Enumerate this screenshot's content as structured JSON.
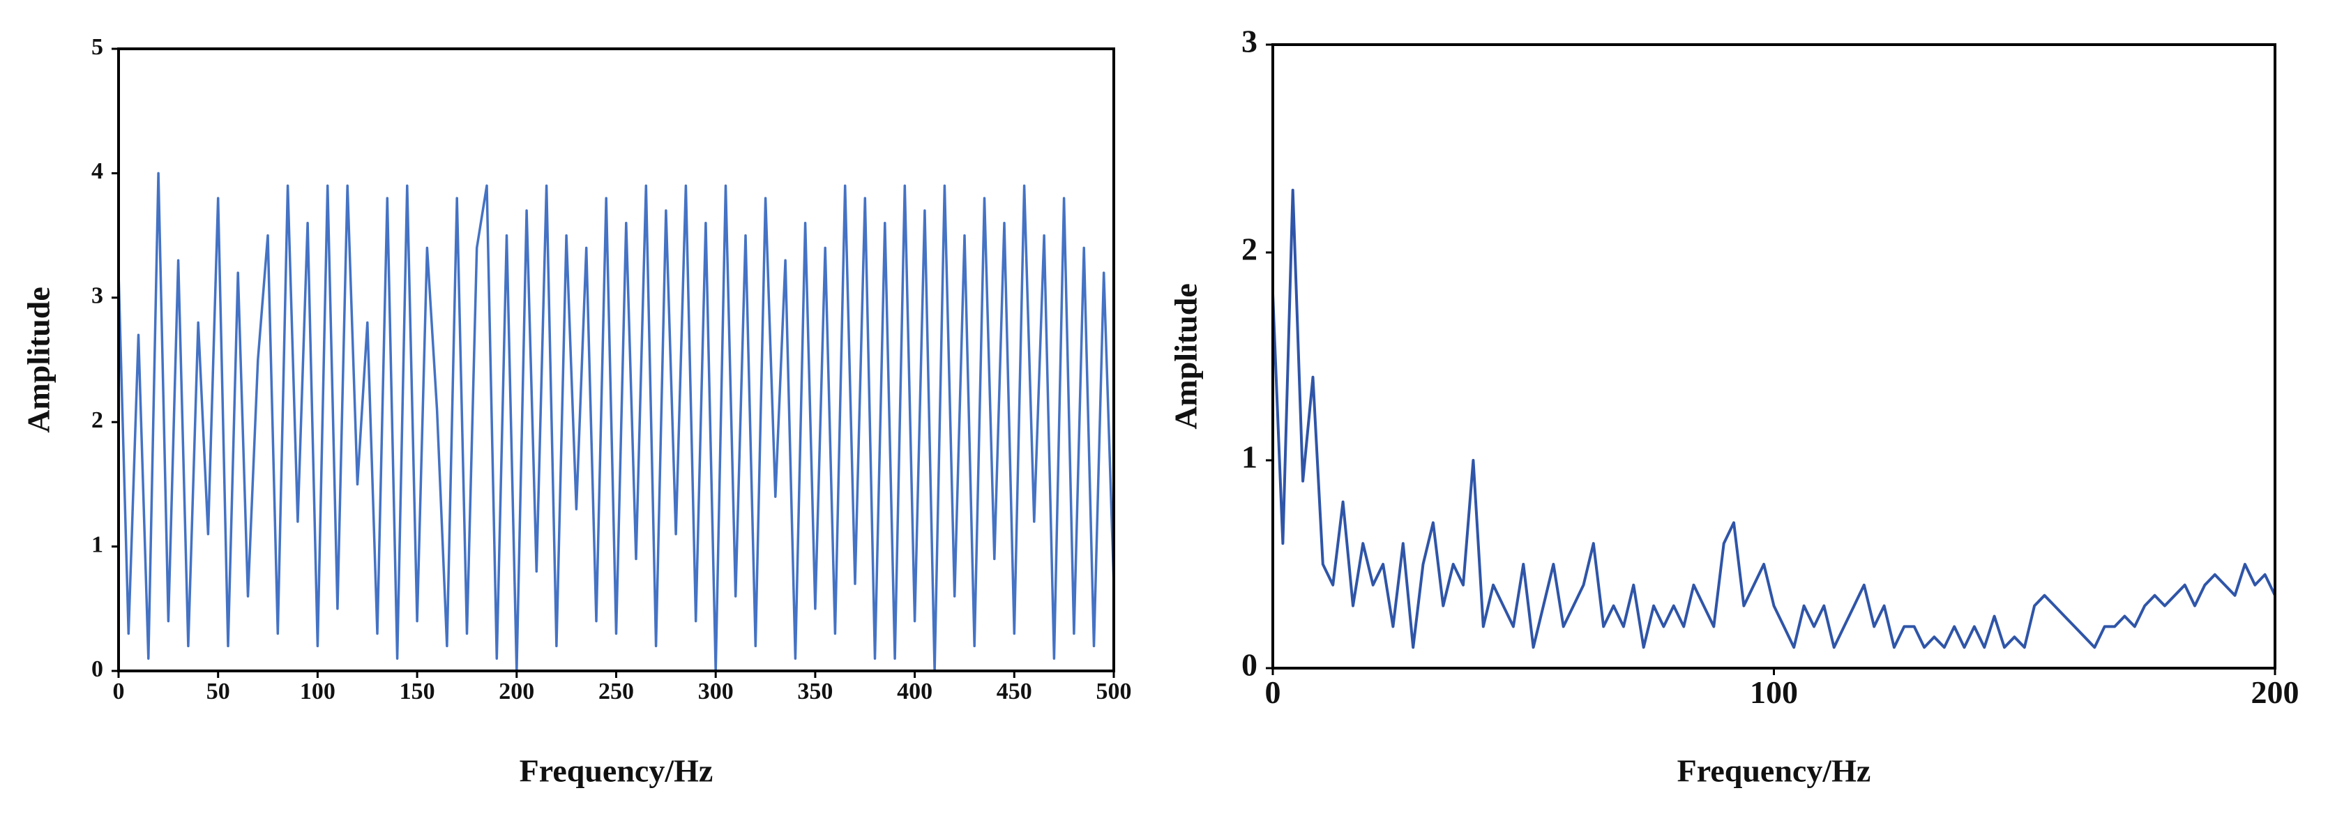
{
  "chart_data": [
    {
      "type": "line",
      "xlabel": "Frequency/Hz",
      "ylabel": "Amplitude",
      "xlim": [
        0,
        500
      ],
      "ylim": [
        0,
        5
      ],
      "xticks": [
        0,
        50,
        100,
        150,
        200,
        250,
        300,
        350,
        400,
        450,
        500
      ],
      "yticks": [
        0,
        1,
        2,
        3,
        4,
        5
      ],
      "x": [
        0,
        5,
        10,
        15,
        20,
        25,
        30,
        35,
        40,
        45,
        50,
        55,
        60,
        65,
        70,
        75,
        80,
        85,
        90,
        95,
        100,
        105,
        110,
        115,
        120,
        125,
        130,
        135,
        140,
        145,
        150,
        155,
        160,
        165,
        170,
        175,
        180,
        185,
        190,
        195,
        200,
        205,
        210,
        215,
        220,
        225,
        230,
        235,
        240,
        245,
        250,
        255,
        260,
        265,
        270,
        275,
        280,
        285,
        290,
        295,
        300,
        305,
        310,
        315,
        320,
        325,
        330,
        335,
        340,
        345,
        350,
        355,
        360,
        365,
        370,
        375,
        380,
        385,
        390,
        395,
        400,
        405,
        410,
        415,
        420,
        425,
        430,
        435,
        440,
        445,
        450,
        455,
        460,
        465,
        470,
        475,
        480,
        485,
        490,
        495,
        500
      ],
      "series": [
        {
          "color": "#4472c4",
          "values": [
            3.2,
            0.3,
            2.7,
            0.1,
            4.0,
            0.4,
            3.3,
            0.2,
            2.8,
            1.1,
            3.8,
            0.2,
            3.2,
            0.6,
            2.5,
            3.5,
            0.3,
            3.9,
            1.2,
            3.6,
            0.2,
            3.9,
            0.5,
            3.9,
            1.5,
            2.8,
            0.3,
            3.8,
            0.1,
            3.9,
            0.4,
            3.4,
            2.1,
            0.2,
            3.8,
            0.3,
            3.4,
            3.9,
            0.1,
            3.5,
            0.0,
            3.7,
            0.8,
            3.9,
            0.2,
            3.5,
            1.3,
            3.4,
            0.4,
            3.8,
            0.3,
            3.6,
            0.9,
            3.9,
            0.2,
            3.7,
            1.1,
            3.9,
            0.4,
            3.6,
            0.0,
            3.9,
            0.6,
            3.5,
            0.2,
            3.8,
            1.4,
            3.3,
            0.1,
            3.6,
            0.5,
            3.4,
            0.3,
            3.9,
            0.7,
            3.8,
            0.1,
            3.6,
            0.1,
            3.9,
            0.4,
            3.7,
            0.0,
            3.9,
            0.6,
            3.5,
            0.2,
            3.8,
            0.9,
            3.6,
            0.3,
            3.9,
            1.2,
            3.5,
            0.1,
            3.8,
            0.3,
            3.4,
            0.2,
            3.2,
            0.7
          ]
        }
      ]
    },
    {
      "type": "line",
      "xlabel": "Frequency/Hz",
      "ylabel": "Amplitude",
      "xlim": [
        0,
        200
      ],
      "ylim": [
        0,
        3
      ],
      "xticks": [
        0,
        100,
        200
      ],
      "yticks": [
        0,
        1,
        2,
        3
      ],
      "x": [
        0,
        2,
        4,
        6,
        8,
        10,
        12,
        14,
        16,
        18,
        20,
        22,
        24,
        26,
        28,
        30,
        32,
        34,
        36,
        38,
        40,
        42,
        44,
        46,
        48,
        50,
        52,
        54,
        56,
        58,
        60,
        62,
        64,
        66,
        68,
        70,
        72,
        74,
        76,
        78,
        80,
        82,
        84,
        86,
        88,
        90,
        92,
        94,
        96,
        98,
        100,
        102,
        104,
        106,
        108,
        110,
        112,
        114,
        116,
        118,
        120,
        122,
        124,
        126,
        128,
        130,
        132,
        134,
        136,
        138,
        140,
        142,
        144,
        146,
        148,
        150,
        152,
        154,
        156,
        158,
        160,
        162,
        164,
        166,
        168,
        170,
        172,
        174,
        176,
        178,
        180,
        182,
        184,
        186,
        188,
        190,
        192,
        194,
        196,
        198,
        200
      ],
      "series": [
        {
          "color": "#2f55a8",
          "values": [
            1.8,
            0.6,
            2.3,
            0.9,
            1.4,
            0.5,
            0.4,
            0.8,
            0.3,
            0.6,
            0.4,
            0.5,
            0.2,
            0.6,
            0.1,
            0.5,
            0.7,
            0.3,
            0.5,
            0.4,
            1.0,
            0.2,
            0.4,
            0.3,
            0.2,
            0.5,
            0.1,
            0.3,
            0.5,
            0.2,
            0.3,
            0.4,
            0.6,
            0.2,
            0.3,
            0.2,
            0.4,
            0.1,
            0.3,
            0.2,
            0.3,
            0.2,
            0.4,
            0.3,
            0.2,
            0.6,
            0.7,
            0.3,
            0.4,
            0.5,
            0.3,
            0.2,
            0.1,
            0.3,
            0.2,
            0.3,
            0.1,
            0.2,
            0.3,
            0.4,
            0.2,
            0.3,
            0.1,
            0.2,
            0.2,
            0.1,
            0.15,
            0.1,
            0.2,
            0.1,
            0.2,
            0.1,
            0.25,
            0.1,
            0.15,
            0.1,
            0.3,
            0.35,
            0.3,
            0.25,
            0.2,
            0.15,
            0.1,
            0.2,
            0.2,
            0.25,
            0.2,
            0.3,
            0.35,
            0.3,
            0.35,
            0.4,
            0.3,
            0.4,
            0.45,
            0.4,
            0.35,
            0.5,
            0.4,
            0.45,
            0.35
          ]
        }
      ]
    }
  ]
}
